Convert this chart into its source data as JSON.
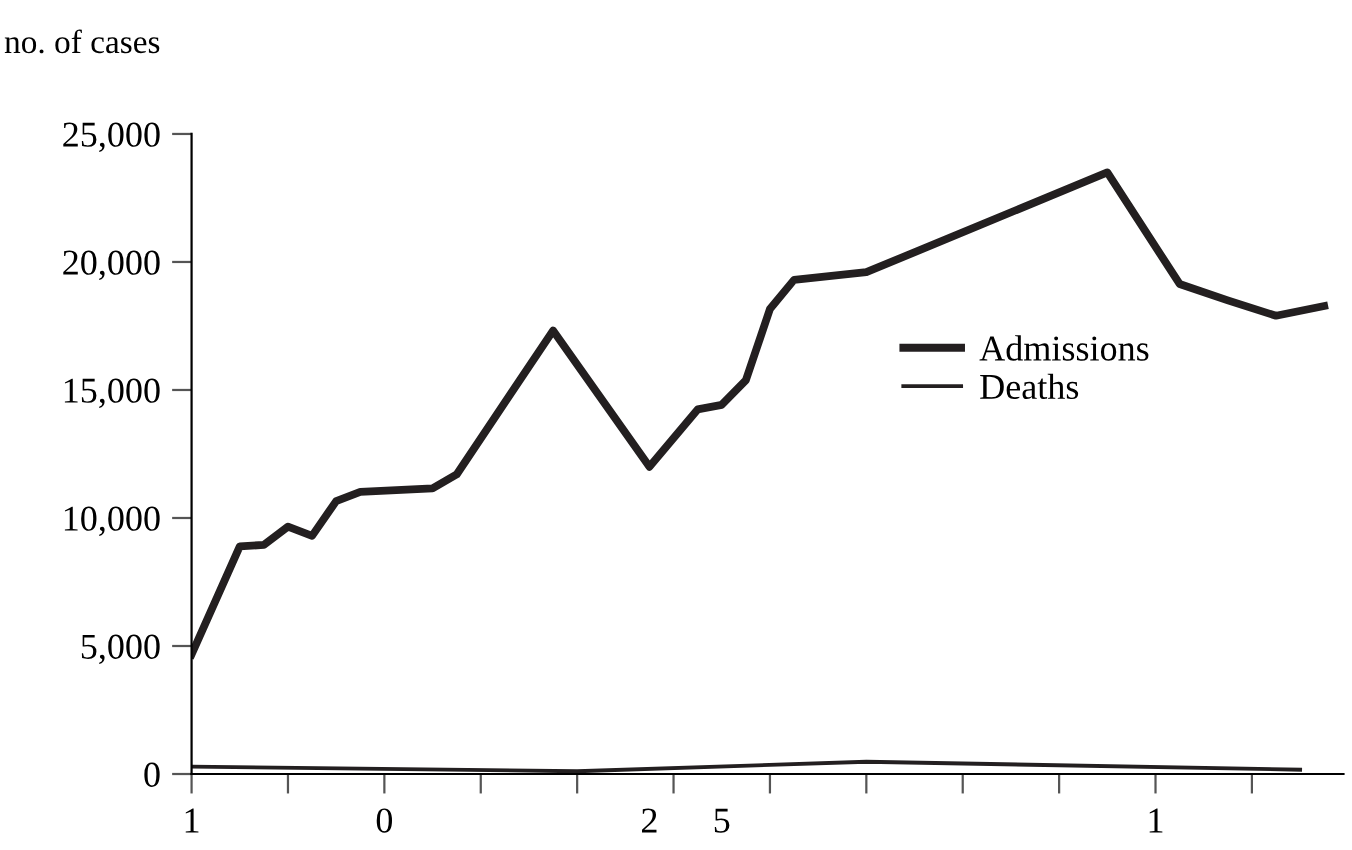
{
  "chart_data": {
    "type": "line",
    "ylabel": "no. of cases",
    "categories": [
      "1",
      null,
      null,
      null,
      null,
      null,
      null,
      null,
      "0",
      null,
      null,
      null,
      null,
      null,
      null,
      null,
      null,
      null,
      null,
      "2",
      null,
      null,
      "5",
      null,
      null,
      null,
      null,
      null,
      null,
      null,
      null,
      null,
      null,
      null,
      null,
      null,
      null,
      null,
      null,
      null,
      "1",
      null,
      null,
      null,
      null,
      null,
      null,
      null
    ],
    "ylim": [
      0,
      25000
    ],
    "yticks": [
      {
        "value": 0,
        "label": "0"
      },
      {
        "value": 5000,
        "label": "5,000"
      },
      {
        "value": 10000,
        "label": "10,000"
      },
      {
        "value": 15000,
        "label": "15,000"
      },
      {
        "value": 20000,
        "label": "20,000"
      },
      {
        "value": 25000,
        "label": "25,000"
      }
    ],
    "grid": false,
    "legend": "right",
    "series": [
      {
        "name": "Admissions",
        "color": "#231f20",
        "values": [
          4670,
          null,
          8890,
          8950,
          9660,
          9300,
          10660,
          11020,
          null,
          null,
          11160,
          11700,
          null,
          null,
          null,
          17320,
          null,
          null,
          null,
          12000,
          null,
          14240,
          14420,
          15380,
          18160,
          19300,
          null,
          null,
          19600,
          null,
          null,
          null,
          null,
          null,
          null,
          null,
          null,
          null,
          23500,
          null,
          null,
          19140,
          null,
          18500,
          null,
          17900,
          null,
          18280
        ]
      },
      {
        "name": "Deaths",
        "color": "#231f20",
        "values": [
          290,
          null,
          null,
          null,
          null,
          null,
          null,
          null,
          null,
          null,
          null,
          null,
          null,
          null,
          null,
          null,
          110,
          null,
          null,
          null,
          null,
          null,
          null,
          null,
          null,
          null,
          null,
          null,
          480,
          null,
          null,
          null,
          null,
          null,
          null,
          null,
          null,
          null,
          null,
          null,
          null,
          null,
          null,
          null,
          null,
          null,
          170,
          null
        ]
      }
    ]
  }
}
